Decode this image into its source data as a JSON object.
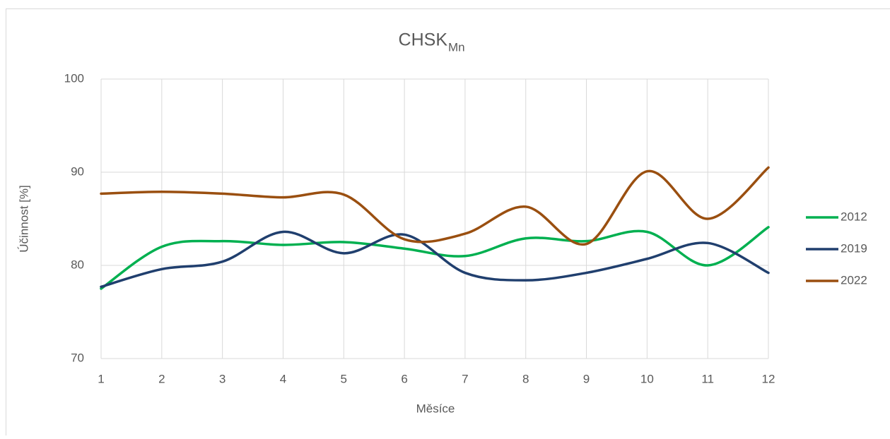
{
  "chart_data": {
    "type": "line",
    "title": "CHSK",
    "title_subscript": "Mn",
    "x_label": "Měsíce",
    "y_label": "Účinnost [%]",
    "x": [
      1,
      2,
      3,
      4,
      5,
      6,
      7,
      8,
      9,
      10,
      11,
      12
    ],
    "series": [
      {
        "name": "2012",
        "color": "#00b050",
        "values": [
          77.5,
          82.0,
          82.6,
          82.2,
          82.5,
          81.8,
          81.0,
          82.9,
          82.6,
          83.6,
          80.0,
          84.1
        ]
      },
      {
        "name": "2019",
        "color": "#203f6e",
        "values": [
          77.7,
          79.6,
          80.4,
          83.6,
          81.3,
          83.3,
          79.2,
          78.4,
          79.2,
          80.7,
          82.4,
          79.2
        ]
      },
      {
        "name": "2022",
        "color": "#9a4f10",
        "values": [
          87.7,
          87.9,
          87.7,
          87.3,
          87.6,
          82.8,
          83.4,
          86.3,
          82.3,
          90.1,
          85.0,
          90.5
        ]
      }
    ],
    "xlim": [
      1,
      12
    ],
    "xticks": [
      1,
      2,
      3,
      4,
      5,
      6,
      7,
      8,
      9,
      10,
      11,
      12
    ],
    "ylim": [
      70,
      100
    ],
    "yticks": [
      70,
      80,
      90,
      100
    ],
    "grid": true,
    "smooth": true,
    "legend": "right"
  }
}
